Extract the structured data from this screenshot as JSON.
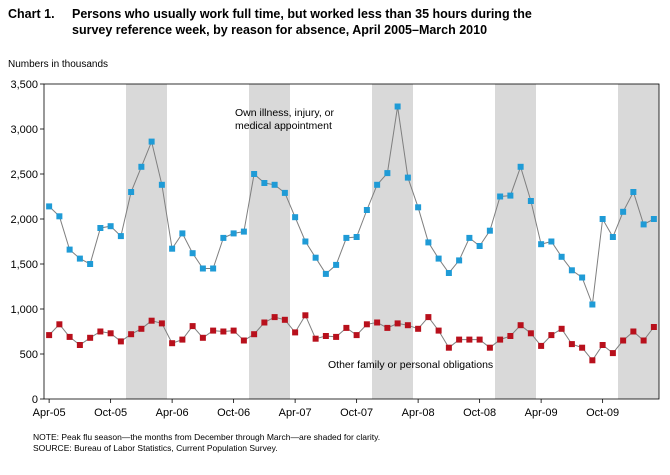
{
  "title": {
    "label": "Chart 1.",
    "line1": "Persons who usually work full time, but worked  less than 35 hours during the",
    "line2": "survey  reference  week,  by reason for absence,  April 2005–March  2010"
  },
  "notes": {
    "note": "NOTE: Peak flu season—the months from December through March—are shaded for clarity.",
    "source": "SOURCE: Bureau of Labor Statistics, Current Population Survey."
  },
  "chart_data": {
    "type": "line",
    "ylabel": "Numbers in thousands",
    "ylim": [
      0,
      3500
    ],
    "y_ticks": [
      "0",
      "500",
      "1,000",
      "1,500",
      "2,000",
      "2,500",
      "3,000",
      "3,500"
    ],
    "x_tick_labels": [
      "Apr-05",
      "Oct-05",
      "Apr-06",
      "Oct-06",
      "Apr-07",
      "Oct-07",
      "Apr-08",
      "Oct-08",
      "Apr-09",
      "Oct-09"
    ],
    "x_tick_month_index": [
      0,
      6,
      12,
      18,
      24,
      30,
      36,
      42,
      48,
      54
    ],
    "months_count": 60,
    "shaded_periods": [
      {
        "label": "Dec 2005–Mar 2006",
        "start_index": 8,
        "end_index": 11
      },
      {
        "label": "Dec 2006–Mar 2007",
        "start_index": 20,
        "end_index": 23
      },
      {
        "label": "Dec 2007–Mar 2008",
        "start_index": 32,
        "end_index": 35
      },
      {
        "label": "Dec 2008–Mar 2009",
        "start_index": 44,
        "end_index": 47
      },
      {
        "label": "Dec 2009–Mar 2010",
        "start_index": 56,
        "end_index": 59
      }
    ],
    "series": [
      {
        "name": "Own illness, injury, or medical appointment",
        "label_lines": [
          "Own illness, injury, or",
          "medical appointment"
        ],
        "color": "#1f9bd6",
        "marker": "square",
        "values": [
          2140,
          2030,
          1660,
          1560,
          1500,
          1900,
          1920,
          1810,
          2300,
          2580,
          2860,
          2380,
          1670,
          1840,
          1620,
          1450,
          1450,
          1790,
          1840,
          1860,
          2500,
          2400,
          2380,
          2290,
          2020,
          1750,
          1570,
          1390,
          1490,
          1790,
          1800,
          2100,
          2380,
          2510,
          3250,
          2460,
          2130,
          1740,
          1560,
          1400,
          1540,
          1790,
          1700,
          1870,
          2250,
          2260,
          2580,
          2200,
          1720,
          1750,
          1580,
          1430,
          1350,
          1050,
          2000,
          1800,
          2080,
          2300,
          1940,
          2000
        ]
      },
      {
        "name": "Other family or personal obligations",
        "label_lines": [
          "Other family or personal obligations"
        ],
        "color": "#b8101c",
        "marker": "square",
        "values": [
          710,
          830,
          690,
          600,
          680,
          750,
          730,
          640,
          720,
          780,
          870,
          840,
          620,
          660,
          810,
          680,
          760,
          750,
          760,
          650,
          720,
          850,
          910,
          880,
          740,
          930,
          670,
          700,
          690,
          790,
          710,
          830,
          850,
          790,
          840,
          820,
          780,
          910,
          760,
          570,
          660,
          660,
          660,
          570,
          660,
          700,
          820,
          730,
          590,
          710,
          780,
          610,
          570,
          430,
          600,
          510,
          650,
          750,
          650,
          800
        ]
      }
    ]
  }
}
